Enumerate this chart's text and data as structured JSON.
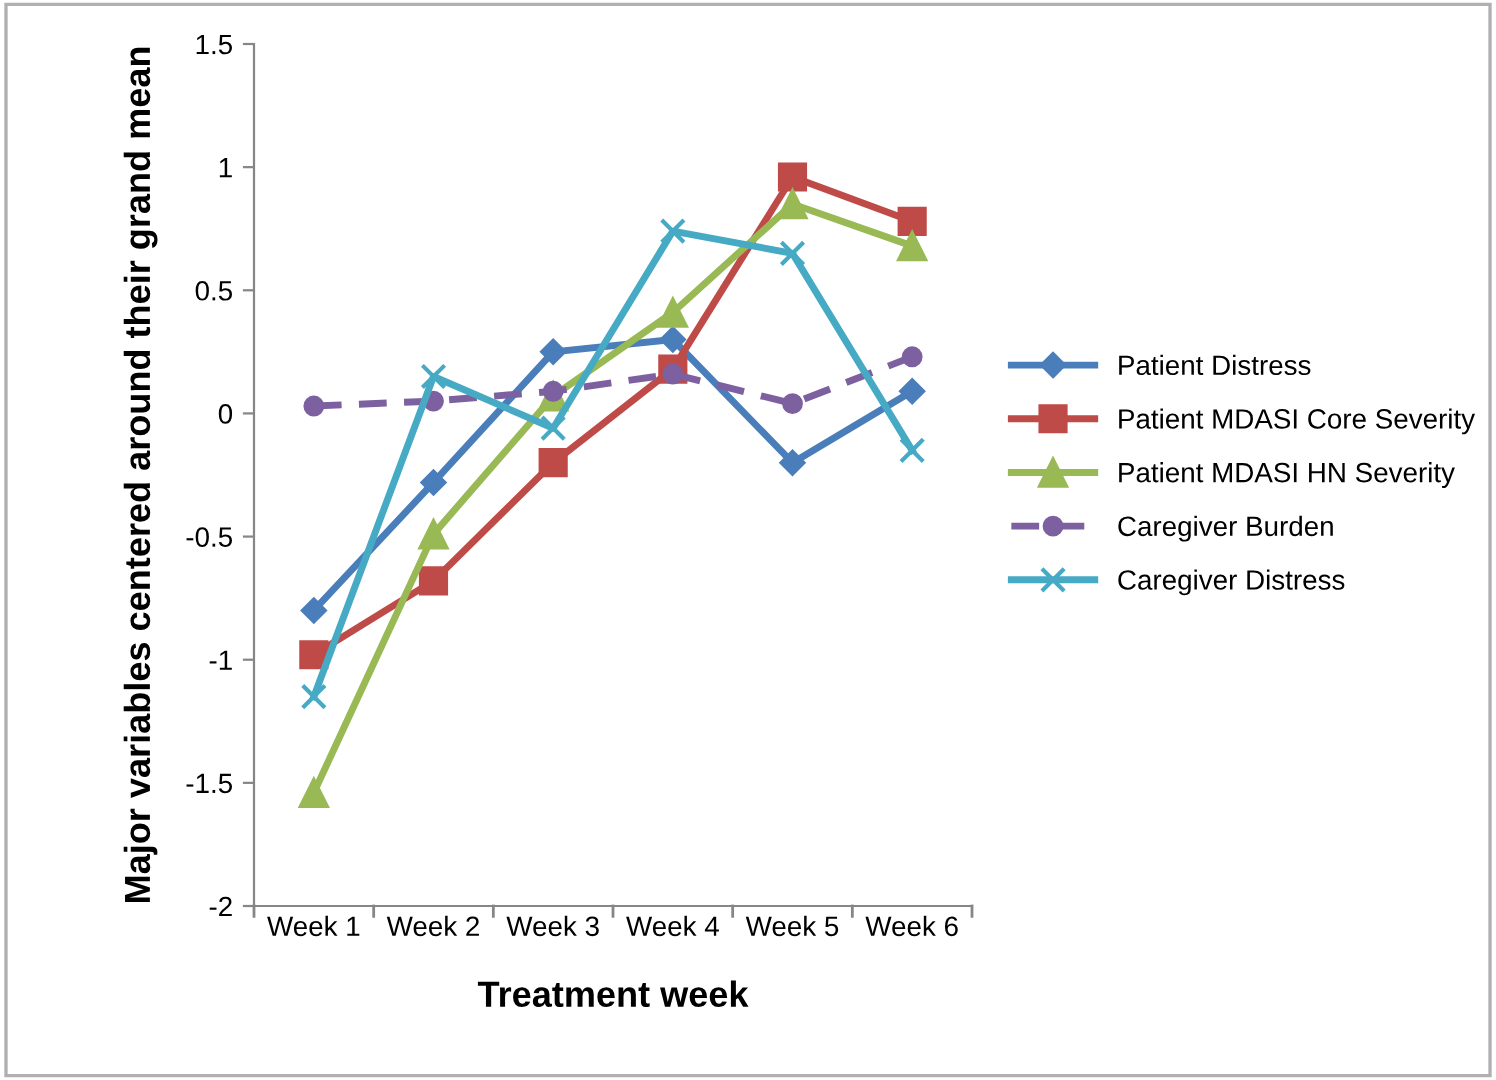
{
  "chart_data": {
    "type": "line",
    "xlabel": "Treatment week",
    "ylabel": "Major variables centered around their grand mean",
    "categories": [
      "Week 1",
      "Week 2",
      "Week 3",
      "Week 4",
      "Week 5",
      "Week 6"
    ],
    "ylim": [
      -2,
      1.5
    ],
    "yticks": [
      -2,
      -1.5,
      -1,
      -0.5,
      0,
      0.5,
      1,
      1.5
    ],
    "grid": false,
    "legend": "right",
    "series": [
      {
        "name": "Patient Distress",
        "color": "#4a7ebb",
        "marker": "diamond",
        "line_style": "solid",
        "values": [
          -0.8,
          -0.28,
          0.25,
          0.3,
          -0.2,
          0.09
        ]
      },
      {
        "name": "Patient MDASI Core Severity",
        "color": "#be4b48",
        "marker": "square",
        "line_style": "solid",
        "values": [
          -0.98,
          -0.68,
          -0.2,
          0.18,
          0.96,
          0.78
        ]
      },
      {
        "name": "Patient MDASI HN Severity",
        "color": "#98b954",
        "marker": "triangle",
        "line_style": "solid",
        "values": [
          -1.54,
          -0.49,
          0.07,
          0.41,
          0.85,
          0.68
        ]
      },
      {
        "name": "Caregiver Burden",
        "color": "#7d60a0",
        "marker": "circle",
        "line_style": "dashed",
        "values": [
          0.03,
          0.05,
          0.09,
          0.16,
          0.04,
          0.23
        ]
      },
      {
        "name": "Caregiver Distress",
        "color": "#46aac5",
        "marker": "cross",
        "line_style": "solid",
        "values": [
          -1.15,
          0.15,
          -0.06,
          0.74,
          0.65,
          -0.15
        ]
      }
    ]
  }
}
